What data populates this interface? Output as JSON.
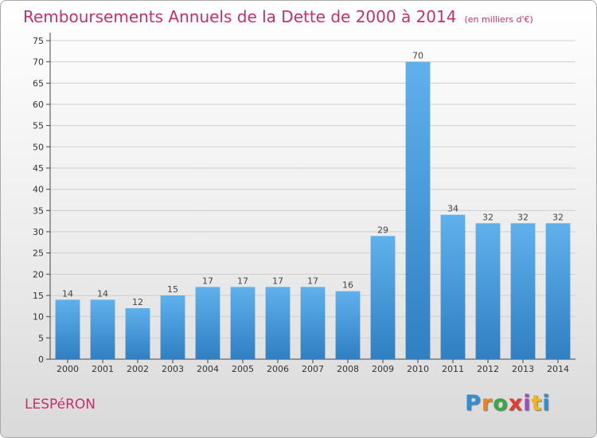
{
  "title": "Remboursements Annuels de la Dette de 2000 à 2014",
  "subtitle": "(en milliers d'€)",
  "town": "LESPéRON",
  "logo": {
    "text": "Proxiti",
    "colors": [
      "#2e8fd6",
      "#e8842a",
      "#3aa846",
      "#e33b2f",
      "#a14ac7",
      "#f2b61b",
      "#2e8fd6"
    ]
  },
  "colors": {
    "bar_light": "#5fb1ec",
    "bar_dark": "#2f7fc2",
    "title": "#c4306a",
    "grid": "#cfcfcf"
  },
  "chart_data": {
    "type": "bar",
    "title": "Remboursements Annuels de la Dette de 2000 à 2014",
    "xlabel": "",
    "ylabel": "",
    "ylim": [
      0,
      75
    ],
    "yticks": [
      0,
      5,
      10,
      15,
      20,
      25,
      30,
      35,
      40,
      45,
      50,
      55,
      60,
      65,
      70,
      75
    ],
    "grid": true,
    "categories": [
      "2000",
      "2001",
      "2002",
      "2003",
      "2004",
      "2005",
      "2006",
      "2007",
      "2008",
      "2009",
      "2010",
      "2011",
      "2012",
      "2013",
      "2014"
    ],
    "values": [
      14,
      14,
      12,
      15,
      17,
      17,
      17,
      17,
      16,
      29,
      70,
      34,
      32,
      32,
      32
    ]
  }
}
